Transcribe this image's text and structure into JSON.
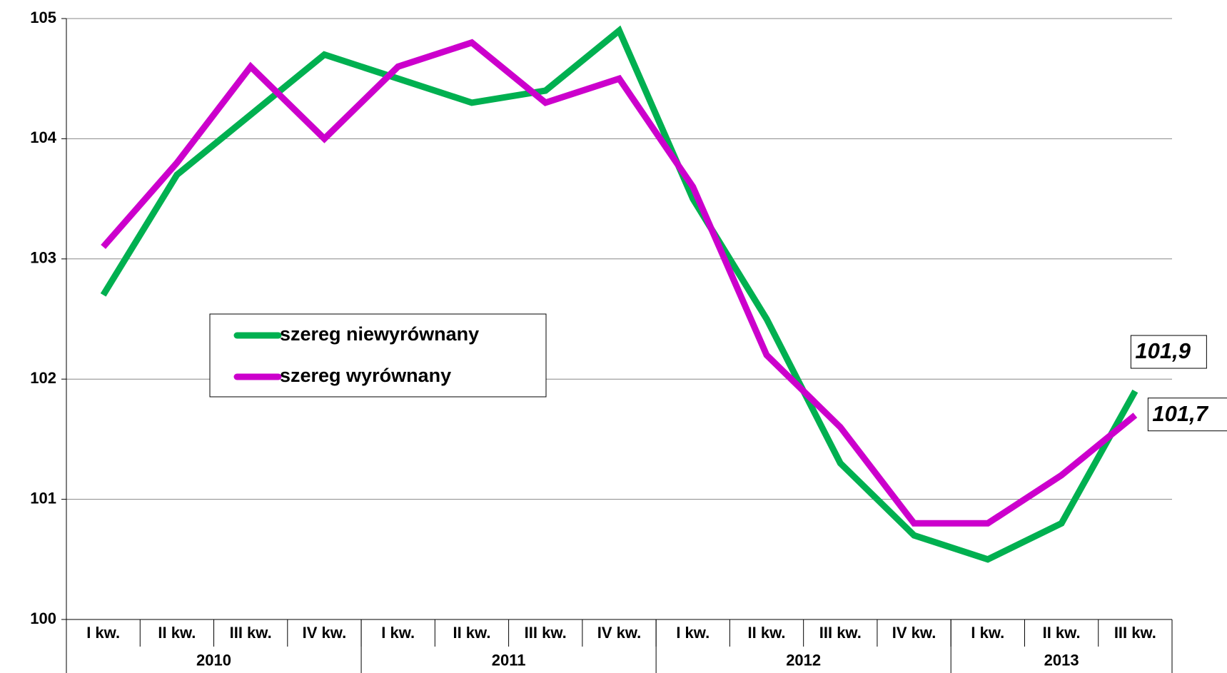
{
  "chart_data": {
    "type": "line",
    "categories": [
      "I kw.",
      "II kw.",
      "III kw.",
      "IV kw.",
      "I kw.",
      "II kw.",
      "III kw.",
      "IV kw.",
      "I kw.",
      "II kw.",
      "III kw.",
      "IV kw.",
      "I kw.",
      "II kw.",
      "III kw."
    ],
    "groups": [
      {
        "label": "2010",
        "count": 4
      },
      {
        "label": "2011",
        "count": 4
      },
      {
        "label": "2012",
        "count": 4
      },
      {
        "label": "2013",
        "count": 3
      }
    ],
    "series": [
      {
        "name": "szereg niewyrównany",
        "color": "#00b050",
        "values": [
          102.7,
          103.7,
          104.2,
          104.7,
          104.5,
          104.3,
          104.4,
          104.9,
          103.5,
          102.5,
          101.3,
          100.7,
          100.5,
          100.8,
          101.9
        ],
        "value_labels": [
          null,
          null,
          null,
          null,
          null,
          null,
          null,
          null,
          null,
          null,
          null,
          null,
          null,
          null,
          "101,9"
        ]
      },
      {
        "name": "szereg wyrównany",
        "color": "#cc00cc",
        "values": [
          103.1,
          103.8,
          104.6,
          104.0,
          104.6,
          104.8,
          104.3,
          104.5,
          103.6,
          102.2,
          101.6,
          100.8,
          100.8,
          101.2,
          101.7
        ],
        "value_labels": [
          null,
          null,
          null,
          null,
          null,
          null,
          null,
          null,
          null,
          null,
          null,
          null,
          null,
          null,
          "101,7"
        ]
      }
    ],
    "ylim": [
      100,
      105
    ],
    "yticks": [
      100,
      101,
      102,
      103,
      104,
      105
    ],
    "grid": true
  }
}
